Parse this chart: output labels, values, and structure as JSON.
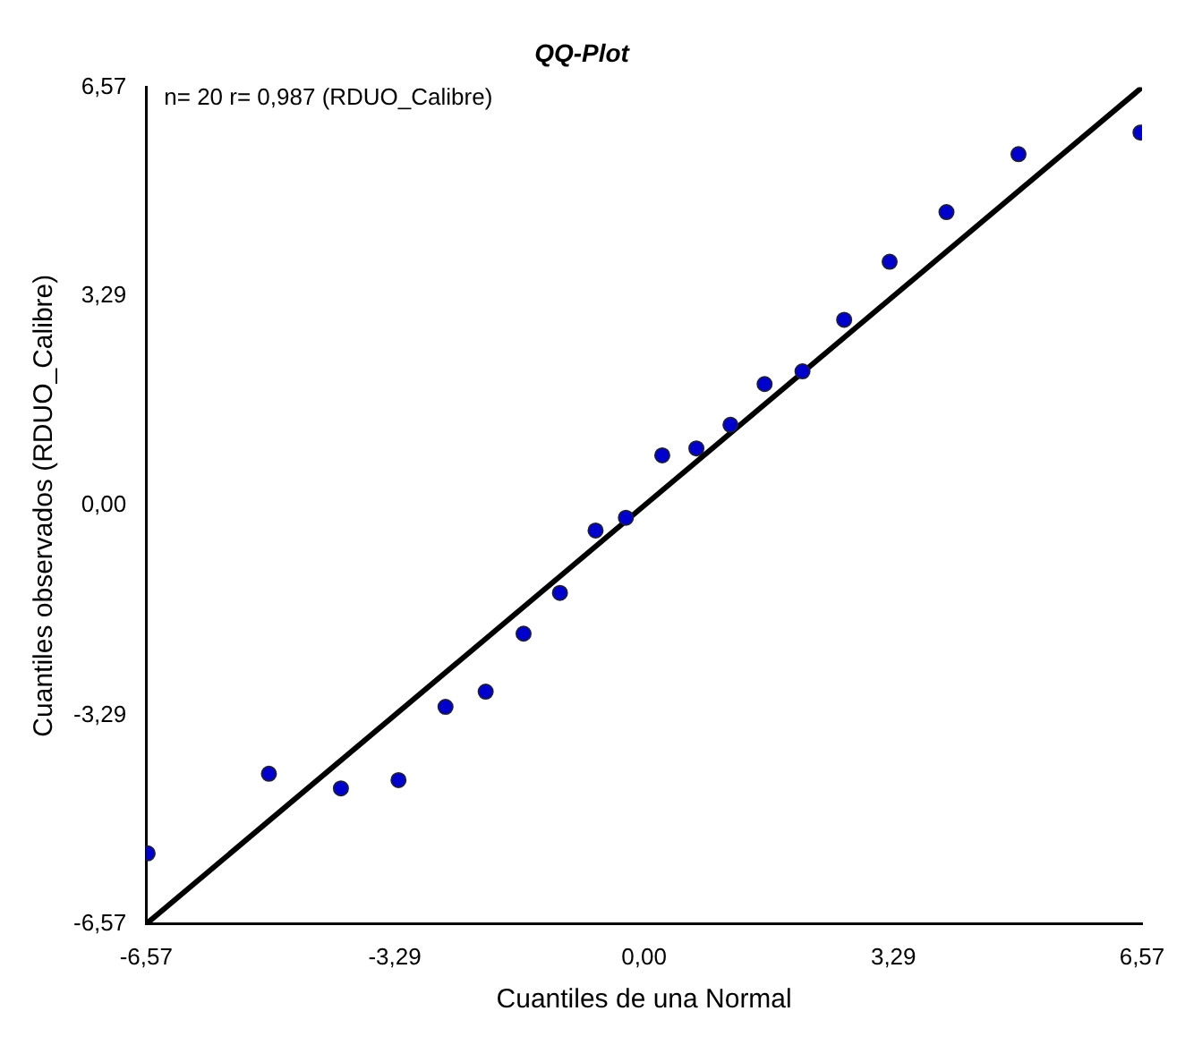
{
  "chart_data": {
    "type": "scatter",
    "title": "QQ-Plot",
    "xlabel": "Cuantiles de una Normal",
    "ylabel": "Cuantiles observados (RDUO_Calibre)",
    "annotations": [
      "n= 20 r= 0,987 (RDUO_Calibre)"
    ],
    "marker": "circle",
    "grid": false,
    "legend": false,
    "xlim": [
      -6.57,
      6.57
    ],
    "ylim": [
      -6.57,
      6.57
    ],
    "xticks": [
      {
        "value": -6.57,
        "label": "-6,57"
      },
      {
        "value": -3.29,
        "label": "-3,29"
      },
      {
        "value": 0,
        "label": "0,00"
      },
      {
        "value": 3.29,
        "label": "3,29"
      },
      {
        "value": 6.57,
        "label": "6,57"
      }
    ],
    "yticks": [
      {
        "value": -6.57,
        "label": "-6,57"
      },
      {
        "value": -3.29,
        "label": "-3,29"
      },
      {
        "value": 0,
        "label": "0,00"
      },
      {
        "value": 3.29,
        "label": "3,29"
      },
      {
        "value": 6.57,
        "label": "6,57"
      }
    ],
    "series": [
      {
        "color": "#0000cc",
        "x": [
          -6.55,
          -4.95,
          -4.0,
          -3.24,
          -2.62,
          -2.09,
          -1.59,
          -1.11,
          -0.64,
          -0.24,
          0.24,
          0.69,
          1.14,
          1.59,
          2.09,
          2.64,
          3.24,
          3.99,
          4.94,
          6.55
        ],
        "values": [
          -5.46,
          -4.21,
          -4.44,
          -4.31,
          -3.16,
          -2.92,
          -2.01,
          -1.37,
          -0.39,
          -0.19,
          0.79,
          0.9,
          1.27,
          1.91,
          2.11,
          2.92,
          3.83,
          4.61,
          5.52,
          5.86
        ]
      },
      {
        "type": "line",
        "color": "#000000",
        "line_style": "solid",
        "marker": "none",
        "x": [
          -6.57,
          6.57
        ],
        "values": [
          -6.57,
          6.57
        ]
      }
    ]
  }
}
